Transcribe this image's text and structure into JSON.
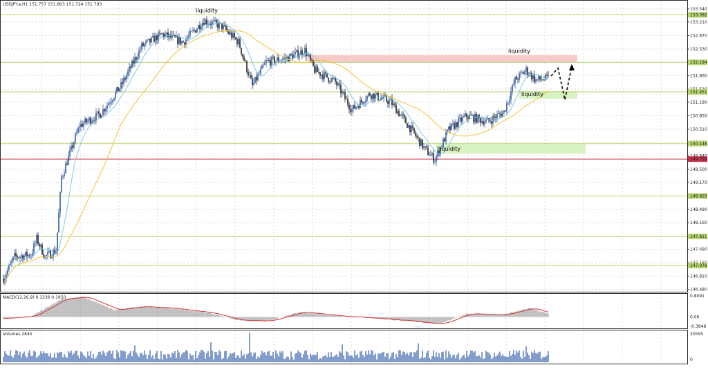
{
  "header": {
    "symbol_line": "USDJPY.a,H1  151.757 151.803 151.724 151.793",
    "macd_label": "MACD(12,26,9) 0.1336 0.1950",
    "volume_label": "Volumes 2845"
  },
  "colors": {
    "bull": "#2f5aa8",
    "bear": "#222222",
    "ma_fast": "#7fc8e8",
    "ma_slow": "#f2c330",
    "level_line": "#b6d66f",
    "red_line": "#c8304a",
    "supply_zone": "#f8c9c9",
    "demand_zone": "#d9f2c2",
    "macd_hist": "#9a9a9a",
    "macd_signal": "#d43030",
    "volume": "#2f5aa8"
  },
  "price_axis": {
    "ticks": [
      "153.540",
      "153.210",
      "152.870",
      "152.530",
      "152.190",
      "151.860",
      "151.520",
      "151.190",
      "150.850",
      "150.510",
      "150.180",
      "149.840",
      "149.500",
      "149.170",
      "148.830",
      "148.490",
      "148.160",
      "147.820",
      "147.490",
      "147.150",
      "146.810",
      "146.480"
    ]
  },
  "level_tags": [
    "153.392",
    "152.194",
    "151.451",
    "150.148",
    "149.759",
    "148.829",
    "147.811",
    "147.078"
  ],
  "macd_axis": [
    "0.8091",
    "0.00",
    "-0.3848"
  ],
  "volume_axis": [
    "30595",
    "0"
  ],
  "annotations": [
    "liquidity",
    "liquidity",
    "liquidity",
    "liquidity"
  ],
  "chart_data": [
    {
      "type": "candlestick",
      "title": "USDJPY.a,H1",
      "ylim": [
        146.42,
        153.66
      ],
      "bars": 395,
      "anchors": [
        {
          "bar": 0,
          "price": 146.75
        },
        {
          "bar": 8,
          "price": 147.3
        },
        {
          "bar": 20,
          "price": 147.35
        },
        {
          "bar": 24,
          "price": 147.75
        },
        {
          "bar": 30,
          "price": 147.3
        },
        {
          "bar": 38,
          "price": 147.45
        },
        {
          "bar": 42,
          "price": 149.3
        },
        {
          "bar": 55,
          "price": 150.6
        },
        {
          "bar": 70,
          "price": 150.9
        },
        {
          "bar": 85,
          "price": 151.6
        },
        {
          "bar": 100,
          "price": 152.6
        },
        {
          "bar": 115,
          "price": 152.9
        },
        {
          "bar": 130,
          "price": 152.7
        },
        {
          "bar": 145,
          "price": 153.25
        },
        {
          "bar": 158,
          "price": 153.1
        },
        {
          "bar": 170,
          "price": 152.7
        },
        {
          "bar": 180,
          "price": 151.6
        },
        {
          "bar": 190,
          "price": 152.2
        },
        {
          "bar": 205,
          "price": 152.3
        },
        {
          "bar": 218,
          "price": 152.5
        },
        {
          "bar": 225,
          "price": 152.0
        },
        {
          "bar": 240,
          "price": 151.7
        },
        {
          "bar": 252,
          "price": 151.0
        },
        {
          "bar": 265,
          "price": 151.4
        },
        {
          "bar": 280,
          "price": 151.2
        },
        {
          "bar": 295,
          "price": 150.5
        },
        {
          "bar": 305,
          "price": 150.0
        },
        {
          "bar": 312,
          "price": 149.75
        },
        {
          "bar": 322,
          "price": 150.5
        },
        {
          "bar": 335,
          "price": 150.85
        },
        {
          "bar": 350,
          "price": 150.7
        },
        {
          "bar": 362,
          "price": 150.95
        },
        {
          "bar": 370,
          "price": 151.75
        },
        {
          "bar": 378,
          "price": 152.0
        },
        {
          "bar": 385,
          "price": 151.75
        },
        {
          "bar": 394,
          "price": 151.79
        }
      ],
      "ma_fast_lag": 12,
      "ma_slow_lag": 45,
      "levels": [
        153.392,
        152.194,
        151.451,
        150.148,
        149.759,
        148.829,
        147.811,
        147.078
      ],
      "zones": [
        {
          "kind": "supply",
          "from_bar": 220,
          "to_bar": 415,
          "low": 152.194,
          "high": 152.38,
          "note_index": 1
        },
        {
          "kind": "demand",
          "from_bar": 373,
          "to_bar": 415,
          "low": 151.28,
          "high": 151.47,
          "note_index": 2
        },
        {
          "kind": "demand",
          "from_bar": 313,
          "to_bar": 421,
          "low": 149.9,
          "high": 150.148,
          "note_index": 3
        }
      ],
      "projection": [
        {
          "bar": 396,
          "price": 151.85
        },
        {
          "bar": 401,
          "price": 152.05
        },
        {
          "bar": 406,
          "price": 151.25
        },
        {
          "bar": 411,
          "price": 152.1
        }
      ],
      "top_note": {
        "bar": 140,
        "price": 153.45,
        "note_index": 0
      }
    },
    {
      "type": "histogram",
      "title": "MACD(12,26,9)",
      "ylim": [
        -0.3848,
        0.8091
      ],
      "anchors": [
        {
          "bar": 0,
          "value": -0.05
        },
        {
          "bar": 20,
          "value": 0.02
        },
        {
          "bar": 42,
          "value": 0.65
        },
        {
          "bar": 58,
          "value": 0.72
        },
        {
          "bar": 80,
          "value": 0.25
        },
        {
          "bar": 100,
          "value": 0.38
        },
        {
          "bar": 120,
          "value": 0.32
        },
        {
          "bar": 150,
          "value": 0.14
        },
        {
          "bar": 170,
          "value": -0.12
        },
        {
          "bar": 190,
          "value": -0.15
        },
        {
          "bar": 215,
          "value": 0.18
        },
        {
          "bar": 240,
          "value": 0.05
        },
        {
          "bar": 270,
          "value": -0.05
        },
        {
          "bar": 300,
          "value": -0.18
        },
        {
          "bar": 315,
          "value": -0.25
        },
        {
          "bar": 335,
          "value": 0.12
        },
        {
          "bar": 360,
          "value": 0.07
        },
        {
          "bar": 380,
          "value": 0.32
        },
        {
          "bar": 394,
          "value": 0.12
        }
      ],
      "signal_lag": 9
    },
    {
      "type": "bar",
      "title": "Volumes",
      "ylim": [
        0,
        30595
      ],
      "base": 9000,
      "spikes": [
        {
          "bar": 178,
          "value": 30000
        },
        {
          "bar": 150,
          "value": 20000
        },
        {
          "bar": 95,
          "value": 17000
        },
        {
          "bar": 245,
          "value": 18000
        },
        {
          "bar": 300,
          "value": 19000
        },
        {
          "bar": 378,
          "value": 16000
        }
      ]
    }
  ]
}
